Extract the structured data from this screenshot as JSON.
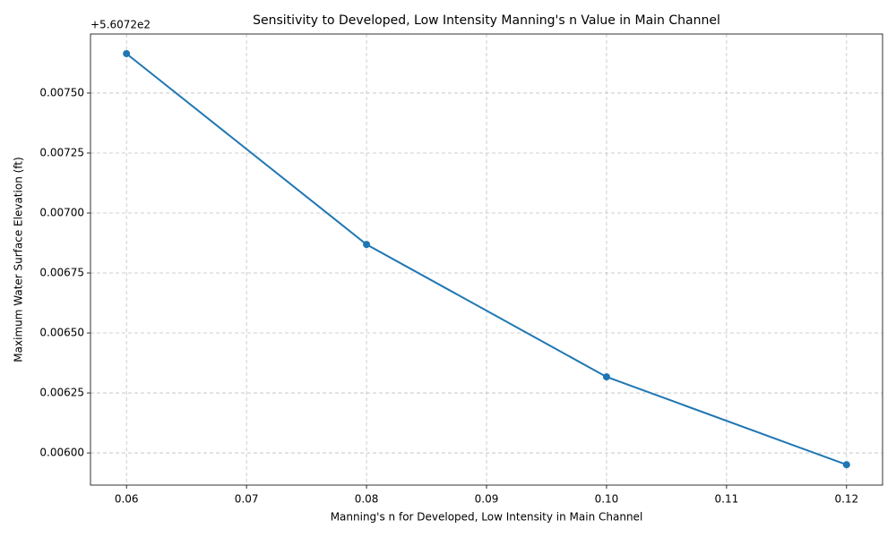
{
  "chart_data": {
    "type": "line",
    "title": "Sensitivity to Developed, Low Intensity Manning's n Value in Main Channel",
    "x_label": "Manning's n for Developed, Low Intensity in Main Channel",
    "y_label": "Maximum Water Surface Elevation (ft)",
    "y_offset_label": "+5.6072e2",
    "x": [
      0.06,
      0.08,
      0.1,
      0.12
    ],
    "series": [
      {
        "name": "Maximum Water Surface Elevation",
        "color": "#1f77b4",
        "values": [
          0.007664,
          0.006869,
          0.006317,
          0.005951
        ]
      }
    ],
    "xlim": [
      0.057,
      0.123
    ],
    "xticks": [
      0.06,
      0.07,
      0.08,
      0.09,
      {
        "value": 0.1,
        "label": "0.10"
      },
      0.11,
      0.12
    ],
    "ylim": [
      0.005866,
      0.007746
    ],
    "yticks": [
      {
        "value": 0.006,
        "label": "0.00600"
      },
      {
        "value": 0.00625,
        "label": "0.00625"
      },
      {
        "value": 0.0065,
        "label": "0.00650"
      },
      {
        "value": 0.00675,
        "label": "0.00675"
      },
      {
        "value": 0.007,
        "label": "0.00700"
      },
      {
        "value": 0.00725,
        "label": "0.00725"
      },
      {
        "value": 0.0075,
        "label": "0.00750"
      }
    ],
    "grid": true
  }
}
